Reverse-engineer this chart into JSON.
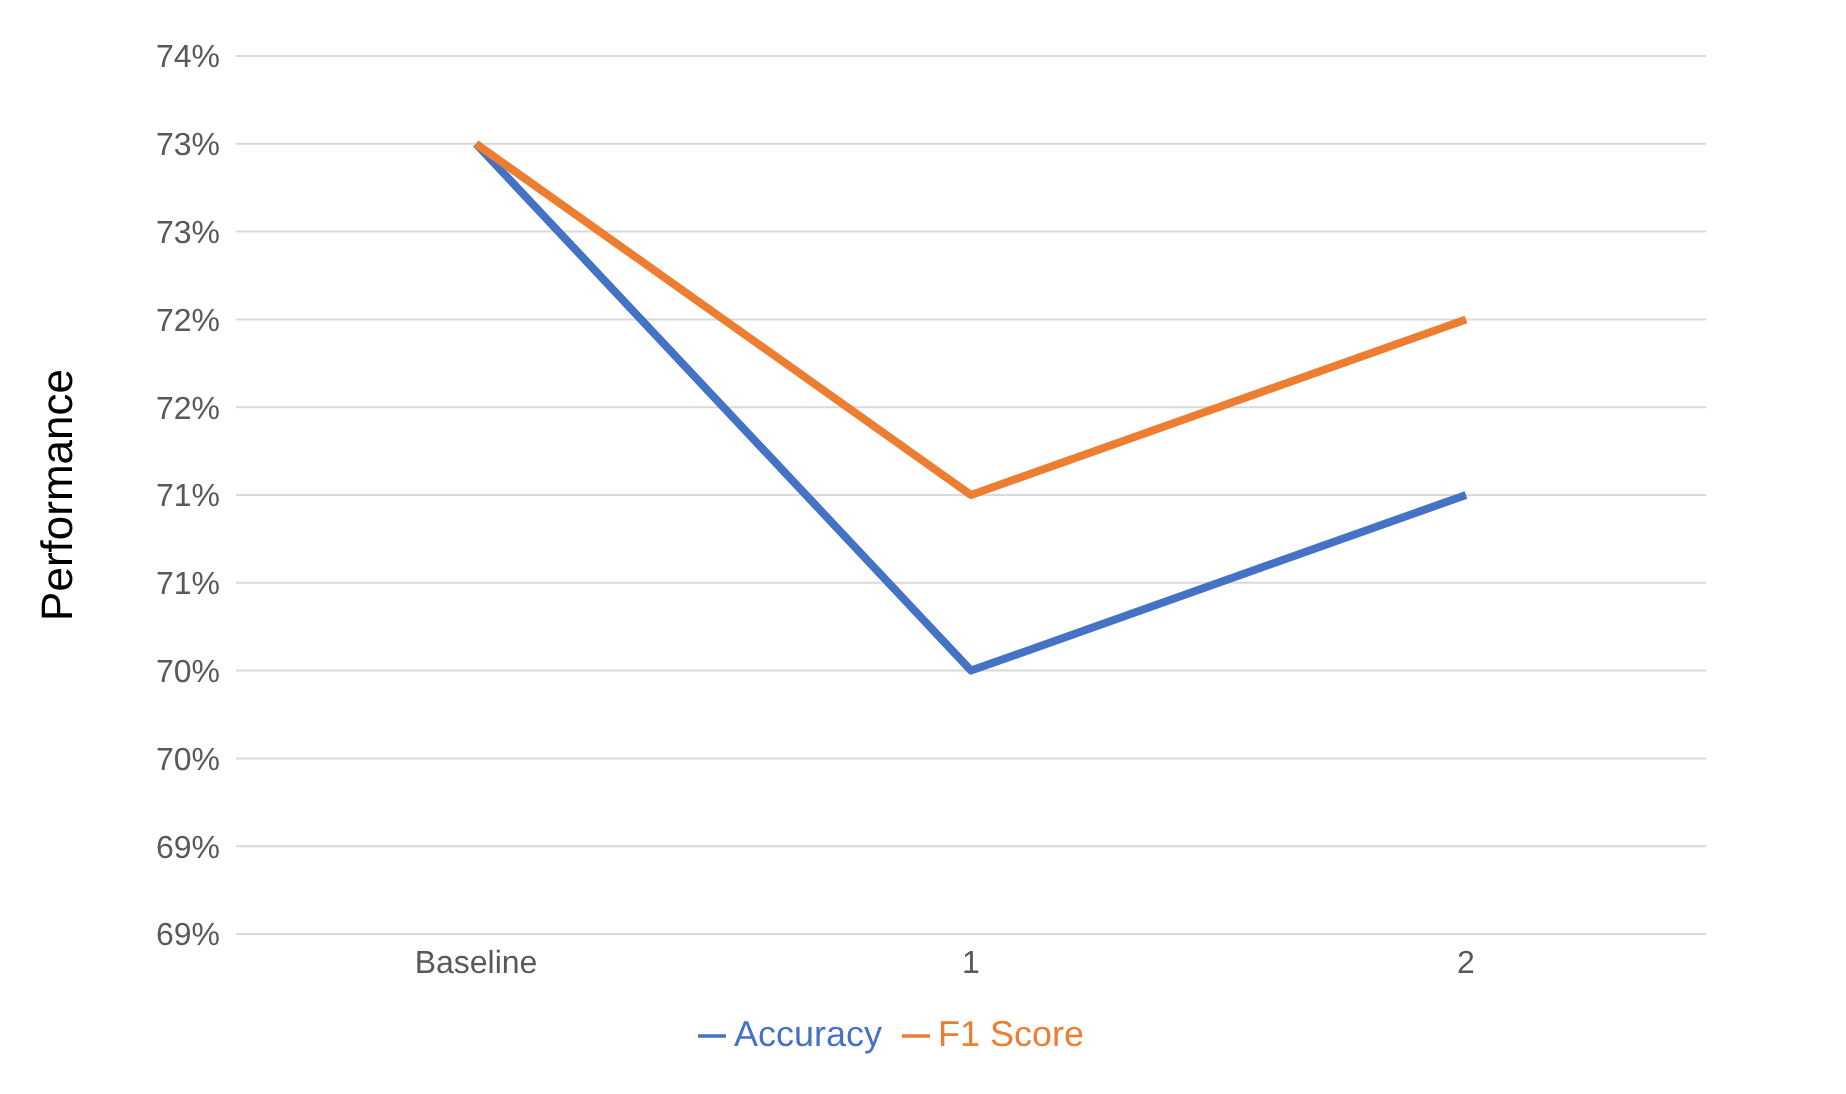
{
  "chart_data": {
    "type": "line",
    "ylabel": "Performance",
    "categories": [
      "Baseline",
      "1",
      "2"
    ],
    "series": [
      {
        "name": "Accuracy",
        "color": "#4472c4",
        "values": [
          73.0,
          70.0,
          71.0
        ]
      },
      {
        "name": "F1 Score",
        "color": "#ed7d31",
        "values": [
          73.0,
          71.0,
          72.0
        ]
      }
    ],
    "ylim": [
      68.5,
      73.5
    ],
    "yticks": [
      {
        "value": 68.5,
        "label": "69%"
      },
      {
        "value": 69,
        "label": "69%"
      },
      {
        "value": 69.5,
        "label": "70%"
      },
      {
        "value": 70,
        "label": "70%"
      },
      {
        "value": 70.5,
        "label": "71%"
      },
      {
        "value": 71,
        "label": "71%"
      },
      {
        "value": 71.5,
        "label": "72%"
      },
      {
        "value": 72,
        "label": "72%"
      },
      {
        "value": 72.5,
        "label": "73%"
      },
      {
        "value": 73,
        "label": "73%"
      },
      {
        "value": 73.5,
        "label": "74%"
      }
    ],
    "grid": "y",
    "legend": "bottom",
    "marker": "none",
    "line_style": "solid"
  }
}
